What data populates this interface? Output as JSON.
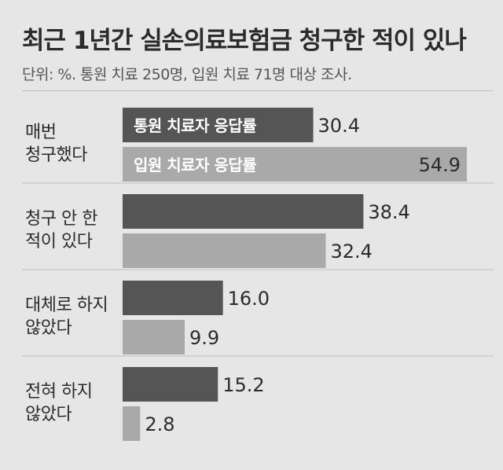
{
  "title": "최근 1년간 실손의료보험금 청구한 적이 있나",
  "subtitle": "단위: %. 통원 치료 250명, 입원 치료 71명 대상 조사.",
  "colors": {
    "outpatient": "#555555",
    "inpatient": "#a9a9a9",
    "background": "#e6e6e6"
  },
  "chart_data": {
    "type": "bar",
    "orientation": "horizontal",
    "categories": [
      [
        "매번",
        "청구했다"
      ],
      [
        "청구 안 한",
        "적이 있다"
      ],
      [
        "대체로 하지",
        "않았다"
      ],
      [
        "전혀 하지",
        "않았다"
      ]
    ],
    "series": [
      {
        "name": "통원 치료자 응답률",
        "values": [
          30.4,
          38.4,
          16.0,
          15.2
        ],
        "labels": [
          "30.4",
          "38.4",
          "16.0",
          "15.2"
        ]
      },
      {
        "name": "입원 치료자 응답률",
        "values": [
          54.9,
          32.4,
          9.9,
          2.8
        ],
        "labels": [
          "54.9",
          "32.4",
          "9.9",
          "2.8"
        ]
      }
    ],
    "legend": "inside-bars",
    "xlim": [
      0,
      54.9
    ],
    "grid": false
  }
}
